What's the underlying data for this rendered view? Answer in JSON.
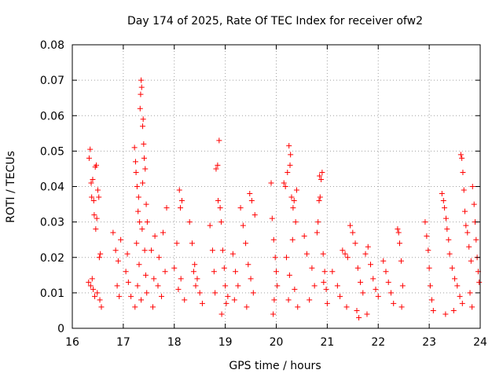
{
  "chart_data": {
    "type": "scatter",
    "title": "Day 174 of 2025, Rate Of TEC Index for receiver ofw2",
    "xlabel": "GPS time / hours",
    "ylabel": "ROTI / TECUs",
    "xlim": [
      16,
      24
    ],
    "ylim": [
      0,
      0.08
    ],
    "x_ticks": [
      "16",
      "17",
      "18",
      "19",
      "20",
      "21",
      "22",
      "23",
      "24"
    ],
    "y_ticks": [
      "0",
      "0.01",
      "0.02",
      "0.03",
      "0.04",
      "0.05",
      "0.06",
      "0.07",
      "0.08"
    ],
    "grid": true,
    "marker": "+",
    "color": "#ff0000",
    "series": [
      {
        "name": "ofw2",
        "points": [
          [
            16.35,
            0.0505
          ],
          [
            16.33,
            0.048
          ],
          [
            16.37,
            0.041
          ],
          [
            16.4,
            0.042
          ],
          [
            16.38,
            0.037
          ],
          [
            16.42,
            0.036
          ],
          [
            16.45,
            0.0455
          ],
          [
            16.47,
            0.046
          ],
          [
            16.5,
            0.039
          ],
          [
            16.52,
            0.037
          ],
          [
            16.43,
            0.032
          ],
          [
            16.46,
            0.028
          ],
          [
            16.48,
            0.031
          ],
          [
            16.55,
            0.021
          ],
          [
            16.53,
            0.02
          ],
          [
            16.32,
            0.013
          ],
          [
            16.36,
            0.012
          ],
          [
            16.41,
            0.011
          ],
          [
            16.44,
            0.009
          ],
          [
            16.49,
            0.01
          ],
          [
            16.54,
            0.008
          ],
          [
            16.57,
            0.006
          ],
          [
            16.39,
            0.014
          ],
          [
            16.8,
            0.027
          ],
          [
            16.85,
            0.022
          ],
          [
            16.9,
            0.019
          ],
          [
            16.95,
            0.025
          ],
          [
            16.88,
            0.012
          ],
          [
            16.92,
            0.009
          ],
          [
            17.05,
            0.016
          ],
          [
            17.1,
            0.013
          ],
          [
            17.15,
            0.009
          ],
          [
            17.08,
            0.021
          ],
          [
            17.22,
            0.051
          ],
          [
            17.24,
            0.047
          ],
          [
            17.25,
            0.044
          ],
          [
            17.27,
            0.04
          ],
          [
            17.3,
            0.037
          ],
          [
            17.29,
            0.033
          ],
          [
            17.33,
            0.062
          ],
          [
            17.34,
            0.066
          ],
          [
            17.35,
            0.07
          ],
          [
            17.36,
            0.068
          ],
          [
            17.38,
            0.057
          ],
          [
            17.39,
            0.059
          ],
          [
            17.4,
            0.052
          ],
          [
            17.41,
            0.048
          ],
          [
            17.43,
            0.045
          ],
          [
            17.38,
            0.041
          ],
          [
            17.45,
            0.035
          ],
          [
            17.47,
            0.03
          ],
          [
            17.32,
            0.03
          ],
          [
            17.37,
            0.028
          ],
          [
            17.26,
            0.024
          ],
          [
            17.42,
            0.022
          ],
          [
            17.31,
            0.018
          ],
          [
            17.44,
            0.015
          ],
          [
            17.28,
            0.012
          ],
          [
            17.46,
            0.01
          ],
          [
            17.35,
            0.008
          ],
          [
            17.23,
            0.006
          ],
          [
            17.55,
            0.022
          ],
          [
            17.62,
            0.026
          ],
          [
            17.7,
            0.02
          ],
          [
            17.78,
            0.027
          ],
          [
            17.85,
            0.034
          ],
          [
            17.6,
            0.014
          ],
          [
            17.68,
            0.012
          ],
          [
            17.75,
            0.009
          ],
          [
            17.82,
            0.016
          ],
          [
            17.58,
            0.006
          ],
          [
            18.1,
            0.039
          ],
          [
            18.15,
            0.036
          ],
          [
            18.12,
            0.034
          ],
          [
            18.05,
            0.024
          ],
          [
            18.0,
            0.017
          ],
          [
            18.08,
            0.011
          ],
          [
            18.2,
            0.008
          ],
          [
            18.13,
            0.014
          ],
          [
            18.3,
            0.03
          ],
          [
            18.35,
            0.024
          ],
          [
            18.4,
            0.018
          ],
          [
            18.45,
            0.014
          ],
          [
            18.5,
            0.01
          ],
          [
            18.55,
            0.007
          ],
          [
            18.42,
            0.012
          ],
          [
            18.38,
            0.016
          ],
          [
            18.7,
            0.029
          ],
          [
            18.75,
            0.022
          ],
          [
            18.78,
            0.016
          ],
          [
            18.8,
            0.01
          ],
          [
            18.82,
            0.045
          ],
          [
            18.85,
            0.046
          ],
          [
            18.88,
            0.053
          ],
          [
            18.86,
            0.036
          ],
          [
            18.9,
            0.034
          ],
          [
            18.92,
            0.03
          ],
          [
            18.95,
            0.022
          ],
          [
            18.98,
            0.017
          ],
          [
            19.0,
            0.012
          ],
          [
            19.02,
            0.007
          ],
          [
            18.93,
            0.004
          ],
          [
            19.05,
            0.009
          ],
          [
            19.15,
            0.021
          ],
          [
            19.2,
            0.016
          ],
          [
            19.25,
            0.012
          ],
          [
            19.18,
            0.008
          ],
          [
            19.3,
            0.034
          ],
          [
            19.35,
            0.029
          ],
          [
            19.4,
            0.024
          ],
          [
            19.45,
            0.018
          ],
          [
            19.5,
            0.014
          ],
          [
            19.55,
            0.01
          ],
          [
            19.48,
            0.038
          ],
          [
            19.52,
            0.036
          ],
          [
            19.58,
            0.032
          ],
          [
            19.42,
            0.006
          ],
          [
            19.9,
            0.041
          ],
          [
            19.92,
            0.031
          ],
          [
            19.95,
            0.025
          ],
          [
            19.98,
            0.02
          ],
          [
            20.0,
            0.016
          ],
          [
            20.02,
            0.012
          ],
          [
            19.96,
            0.008
          ],
          [
            19.94,
            0.004
          ],
          [
            20.15,
            0.041
          ],
          [
            20.18,
            0.04
          ],
          [
            20.22,
            0.044
          ],
          [
            20.25,
            0.0515
          ],
          [
            20.28,
            0.049
          ],
          [
            20.27,
            0.046
          ],
          [
            20.3,
            0.037
          ],
          [
            20.33,
            0.034
          ],
          [
            20.35,
            0.036
          ],
          [
            20.4,
            0.039
          ],
          [
            20.38,
            0.03
          ],
          [
            20.32,
            0.025
          ],
          [
            20.2,
            0.02
          ],
          [
            20.26,
            0.015
          ],
          [
            20.36,
            0.011
          ],
          [
            20.24,
            0.008
          ],
          [
            20.42,
            0.006
          ],
          [
            20.55,
            0.026
          ],
          [
            20.6,
            0.021
          ],
          [
            20.7,
            0.017
          ],
          [
            20.75,
            0.012
          ],
          [
            20.65,
            0.008
          ],
          [
            20.85,
            0.043
          ],
          [
            20.88,
            0.042
          ],
          [
            20.9,
            0.044
          ],
          [
            20.86,
            0.037
          ],
          [
            20.84,
            0.036
          ],
          [
            20.82,
            0.03
          ],
          [
            20.8,
            0.027
          ],
          [
            20.92,
            0.021
          ],
          [
            20.95,
            0.016
          ],
          [
            20.98,
            0.011
          ],
          [
            21.0,
            0.007
          ],
          [
            20.93,
            0.013
          ],
          [
            21.1,
            0.016
          ],
          [
            21.2,
            0.012
          ],
          [
            21.25,
            0.009
          ],
          [
            21.3,
            0.022
          ],
          [
            21.35,
            0.021
          ],
          [
            21.4,
            0.02
          ],
          [
            21.45,
            0.029
          ],
          [
            21.5,
            0.027
          ],
          [
            21.55,
            0.024
          ],
          [
            21.6,
            0.017
          ],
          [
            21.65,
            0.013
          ],
          [
            21.7,
            0.01
          ],
          [
            21.75,
            0.021
          ],
          [
            21.8,
            0.023
          ],
          [
            21.85,
            0.018
          ],
          [
            21.9,
            0.014
          ],
          [
            21.95,
            0.011
          ],
          [
            22.0,
            0.009
          ],
          [
            21.38,
            0.006
          ],
          [
            21.58,
            0.005
          ],
          [
            21.78,
            0.004
          ],
          [
            21.62,
            0.003
          ],
          [
            22.1,
            0.019
          ],
          [
            22.15,
            0.016
          ],
          [
            22.2,
            0.013
          ],
          [
            22.25,
            0.01
          ],
          [
            22.3,
            0.007
          ],
          [
            22.38,
            0.028
          ],
          [
            22.4,
            0.027
          ],
          [
            22.42,
            0.024
          ],
          [
            22.45,
            0.019
          ],
          [
            22.48,
            0.012
          ],
          [
            22.46,
            0.006
          ],
          [
            22.92,
            0.03
          ],
          [
            22.95,
            0.026
          ],
          [
            22.98,
            0.022
          ],
          [
            23.0,
            0.017
          ],
          [
            23.02,
            0.012
          ],
          [
            23.05,
            0.008
          ],
          [
            23.08,
            0.005
          ],
          [
            23.25,
            0.038
          ],
          [
            23.28,
            0.036
          ],
          [
            23.3,
            0.034
          ],
          [
            23.33,
            0.031
          ],
          [
            23.35,
            0.028
          ],
          [
            23.38,
            0.025
          ],
          [
            23.4,
            0.021
          ],
          [
            23.45,
            0.017
          ],
          [
            23.5,
            0.014
          ],
          [
            23.55,
            0.012
          ],
          [
            23.6,
            0.009
          ],
          [
            23.65,
            0.007
          ],
          [
            23.62,
            0.049
          ],
          [
            23.64,
            0.048
          ],
          [
            23.66,
            0.044
          ],
          [
            23.68,
            0.039
          ],
          [
            23.7,
            0.033
          ],
          [
            23.72,
            0.029
          ],
          [
            23.75,
            0.027
          ],
          [
            23.78,
            0.023
          ],
          [
            23.82,
            0.019
          ],
          [
            23.85,
            0.04
          ],
          [
            23.88,
            0.035
          ],
          [
            23.9,
            0.03
          ],
          [
            23.92,
            0.025
          ],
          [
            23.94,
            0.02
          ],
          [
            23.96,
            0.016
          ],
          [
            23.98,
            0.013
          ],
          [
            23.8,
            0.01
          ],
          [
            23.84,
            0.006
          ],
          [
            23.32,
            0.004
          ],
          [
            23.48,
            0.005
          ]
        ]
      }
    ]
  }
}
